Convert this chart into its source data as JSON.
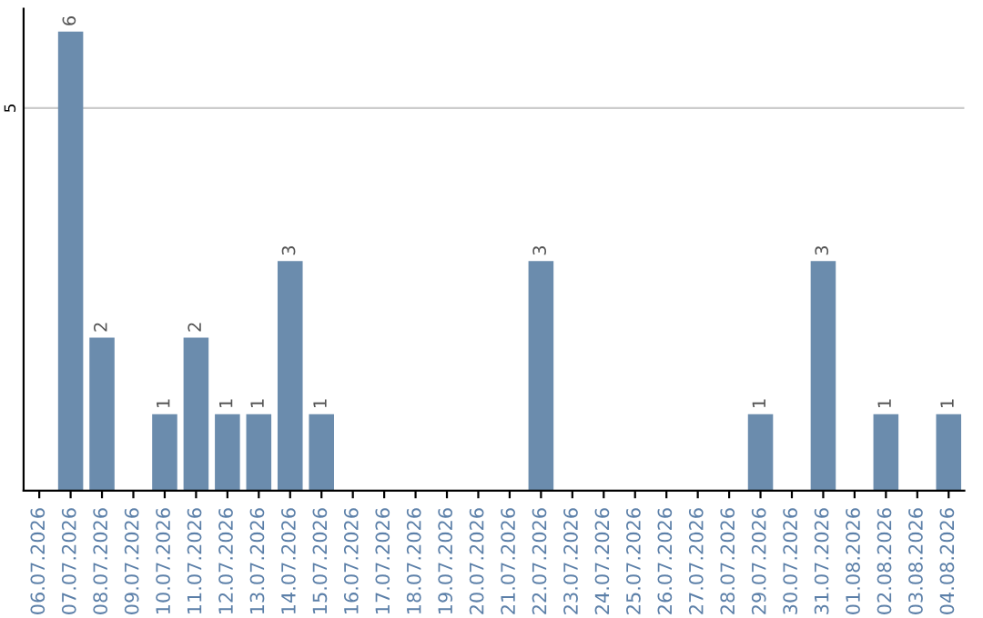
{
  "chart_data": {
    "type": "bar",
    "categories": [
      "06.07.2026",
      "07.07.2026",
      "08.07.2026",
      "09.07.2026",
      "10.07.2026",
      "11.07.2026",
      "12.07.2026",
      "13.07.2026",
      "14.07.2026",
      "15.07.2026",
      "16.07.2026",
      "17.07.2026",
      "18.07.2026",
      "19.07.2026",
      "20.07.2026",
      "21.07.2026",
      "22.07.2026",
      "23.07.2026",
      "24.07.2026",
      "25.07.2026",
      "26.07.2026",
      "27.07.2026",
      "28.07.2026",
      "29.07.2026",
      "30.07.2026",
      "31.07.2026",
      "01.08.2026",
      "02.08.2026",
      "03.08.2026",
      "04.08.2026"
    ],
    "values": [
      0,
      6,
      2,
      0,
      1,
      2,
      1,
      1,
      3,
      1,
      0,
      0,
      0,
      0,
      0,
      0,
      3,
      0,
      0,
      0,
      0,
      0,
      0,
      1,
      0,
      3,
      0,
      1,
      0,
      1
    ],
    "value_labels": [
      null,
      "6",
      "2",
      null,
      "1",
      "2",
      "1",
      "1",
      "3",
      "1",
      null,
      null,
      null,
      null,
      null,
      null,
      "3",
      null,
      null,
      null,
      null,
      null,
      null,
      "1",
      null,
      "3",
      null,
      "1",
      null,
      "1"
    ],
    "color": "#6b8cad",
    "ylim": [
      0,
      6.3
    ],
    "yticks": [
      5
    ],
    "grid": "y"
  }
}
